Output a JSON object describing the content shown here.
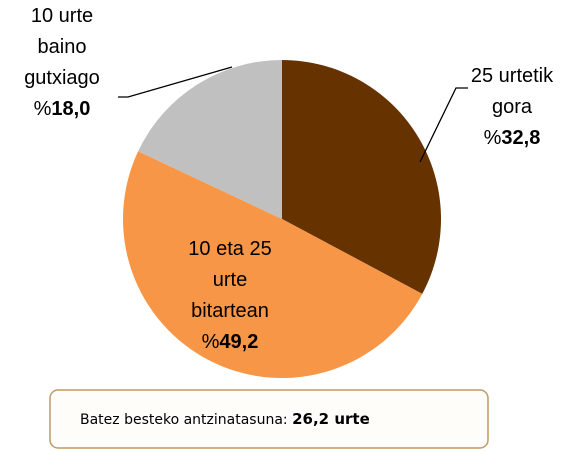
{
  "chart_data": {
    "type": "pie",
    "categories": [
      "25 urtetik\ngora",
      "10 eta 25\nurte\nbitartean",
      "10 urte\nbaino\ngutxiago"
    ],
    "values": [
      32.8,
      49.2,
      18.0
    ],
    "value_labels": [
      "%32,8",
      "%49,2",
      "%18,0"
    ],
    "colors": [
      "#663300",
      "#f79646",
      "#c0c0c0"
    ],
    "annotation": {
      "label": "Batez besteko antzinatasuna:",
      "value": "26,2 urte"
    }
  }
}
